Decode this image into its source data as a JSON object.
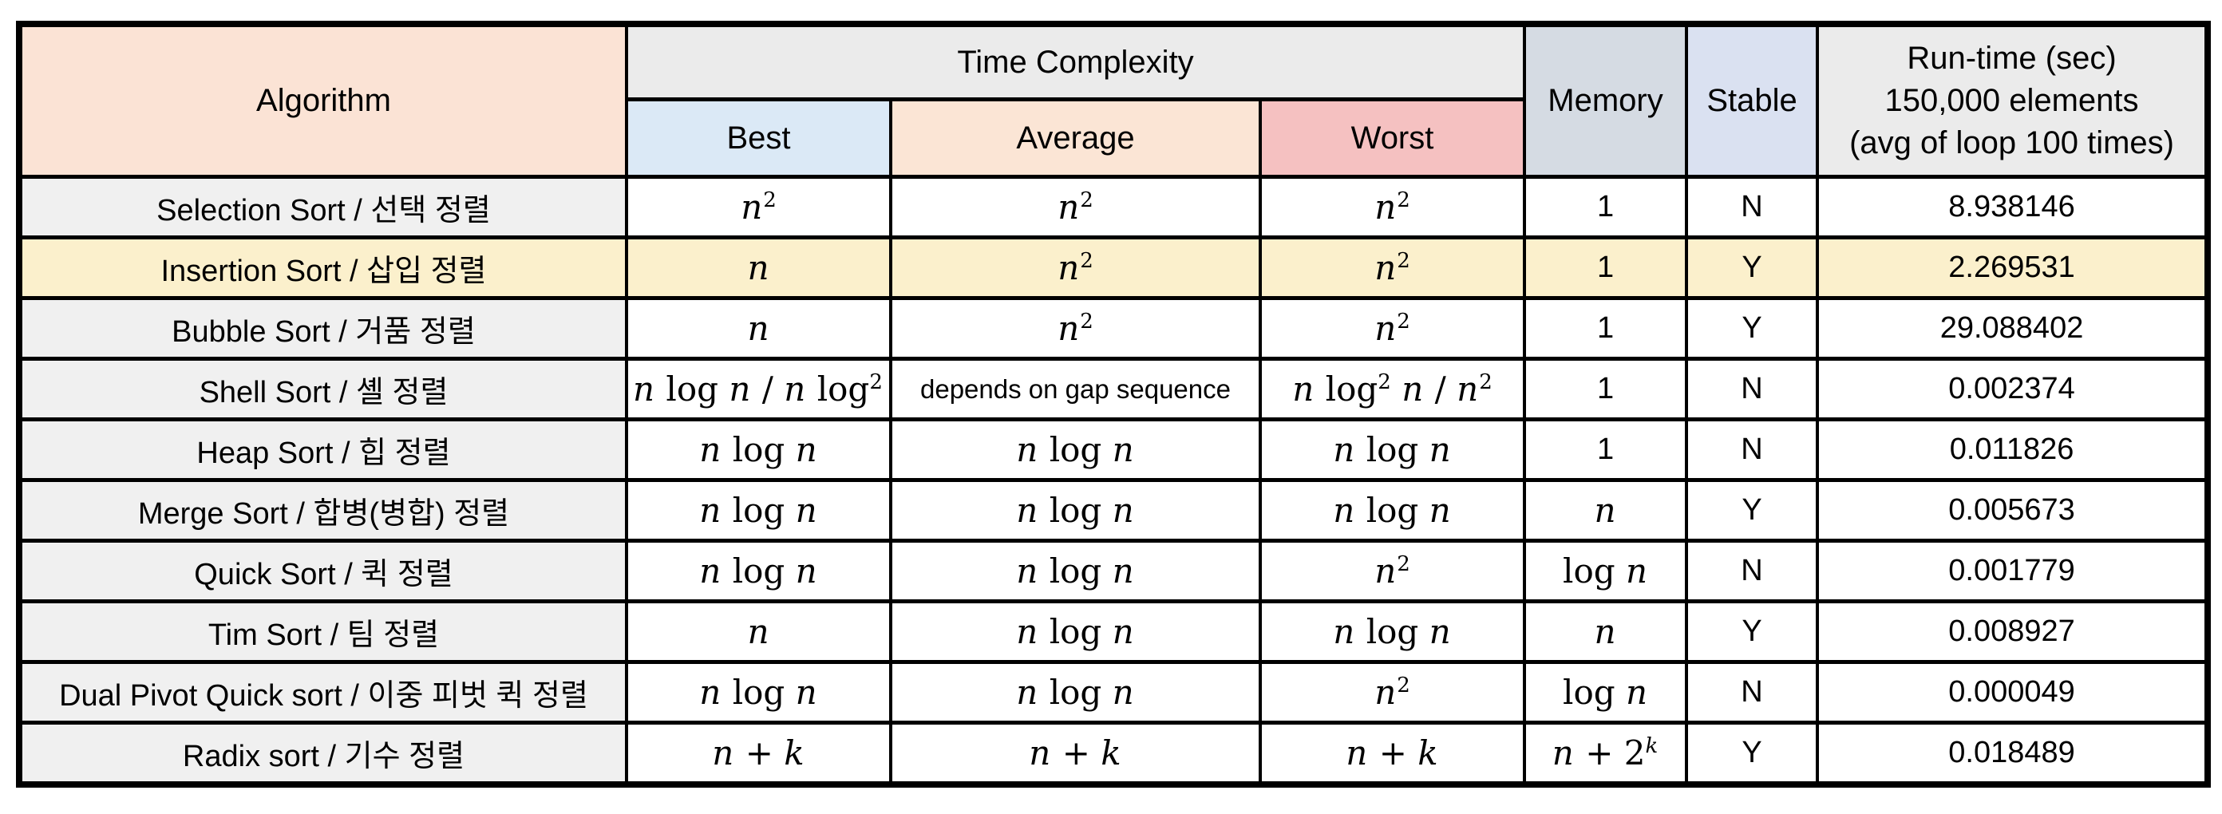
{
  "table": {
    "header": {
      "algorithm": "Algorithm",
      "time_complexity": "Time Complexity",
      "best": "Best",
      "average": "Average",
      "worst": "Worst",
      "memory": "Memory",
      "stable": "Stable",
      "runtime_lines": [
        "Run-time (sec)",
        "150,000 elements",
        "(avg of loop 100 times)"
      ]
    },
    "rows": [
      {
        "algorithm": "Selection Sort / 선택 정렬",
        "best": "n^2",
        "average": "n^2",
        "worst": "n^2",
        "memory": "1",
        "stable": "N",
        "runtime": "8.938146",
        "highlight": false
      },
      {
        "algorithm": "Insertion Sort / 삽입 정렬",
        "best": "n",
        "average": "n^2",
        "worst": "n^2",
        "memory": "1",
        "stable": "Y",
        "runtime": "2.269531",
        "highlight": true
      },
      {
        "algorithm": "Bubble Sort / 거품 정렬",
        "best": "n",
        "average": "n^2",
        "worst": "n^2",
        "memory": "1",
        "stable": "Y",
        "runtime": "29.088402",
        "highlight": false
      },
      {
        "algorithm": "Shell Sort / 셸 정렬",
        "best": "n log n / n log^2 n",
        "average": "depends on gap sequence",
        "worst": "n log^2 n / n^2",
        "memory": "1",
        "stable": "N",
        "runtime": "0.002374",
        "highlight": false
      },
      {
        "algorithm": "Heap Sort / 힙 정렬",
        "best": "n log n",
        "average": "n log n",
        "worst": "n log n",
        "memory": "1",
        "stable": "N",
        "runtime": "0.011826",
        "highlight": false
      },
      {
        "algorithm": "Merge Sort / 합병(병합) 정렬",
        "best": "n log n",
        "average": "n log n",
        "worst": "n log n",
        "memory": "n",
        "stable": "Y",
        "runtime": "0.005673",
        "highlight": false
      },
      {
        "algorithm": "Quick Sort / 퀵 정렬",
        "best": "n log n",
        "average": "n log n",
        "worst": "n^2",
        "memory": "log n",
        "stable": "N",
        "runtime": "0.001779",
        "highlight": false
      },
      {
        "algorithm": "Tim Sort / 팀 정렬",
        "best": "n",
        "average": "n log n",
        "worst": "n log n",
        "memory": "n",
        "stable": "Y",
        "runtime": "0.008927",
        "highlight": false
      },
      {
        "algorithm": "Dual Pivot Quick sort / 이중 피벗 퀵 정렬",
        "best": "n log n",
        "average": "n log n",
        "worst": "n^2",
        "memory": "log n",
        "stable": "N",
        "runtime": "0.000049",
        "highlight": false
      },
      {
        "algorithm": "Radix sort / 기수 정렬",
        "best": "n + k",
        "average": "n + k",
        "worst": "n + k",
        "memory": "n + 2^k",
        "stable": "Y",
        "runtime": "0.018489",
        "highlight": false
      }
    ]
  },
  "colors": {
    "algorithm_header": "#fbe3d5",
    "header_gray": "#ebebeb",
    "best_header": "#dbe9f6",
    "average_header": "#fbe5d5",
    "worst_header": "#f5c1c1",
    "memory_header": "#d5dbe3",
    "stable_header": "#dae1f1",
    "row_label": "#f0f0f0",
    "highlight_row": "#fbf0cc",
    "border": "#000000"
  }
}
